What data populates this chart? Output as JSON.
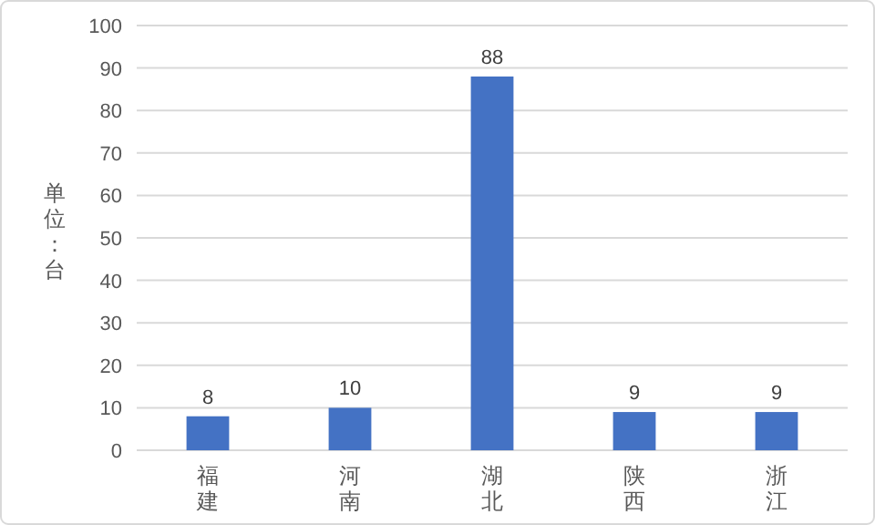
{
  "chart_data": {
    "type": "bar",
    "ylabel": "单位：台",
    "categories": [
      "福建",
      "河南",
      "湖北",
      "陕西",
      "浙江"
    ],
    "values": [
      8,
      10,
      88,
      9,
      9
    ],
    "color": "#4472c4",
    "ylim": [
      0,
      100
    ],
    "yticks": [
      0,
      10,
      20,
      30,
      40,
      50,
      60,
      70,
      80,
      90,
      100
    ],
    "grid": "y",
    "data_labels": true
  }
}
